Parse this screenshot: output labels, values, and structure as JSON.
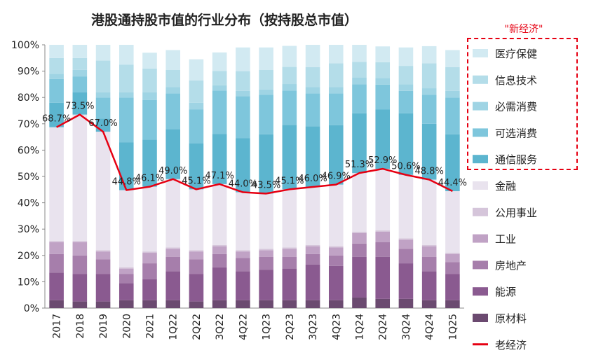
{
  "chart_data": {
    "type": "bar",
    "stacked": true,
    "title": "港股通持股市值的行业分布（按持股总市值）",
    "categories": [
      "2017",
      "2018",
      "2019",
      "2020",
      "2021",
      "1Q22",
      "2Q22",
      "3Q22",
      "4Q22",
      "1Q23",
      "2Q23",
      "3Q23",
      "4Q23",
      "1Q24",
      "2Q24",
      "3Q24",
      "4Q24",
      "1Q25"
    ],
    "ylim": [
      0,
      100
    ],
    "yticks": [
      "0%",
      "10%",
      "20%",
      "30%",
      "40%",
      "50%",
      "60%",
      "70%",
      "80%",
      "90%",
      "100%"
    ],
    "grid": false,
    "legend_position": "right",
    "highlight_label": "\"新经济\"",
    "series": [
      {
        "name": "原材料",
        "color": "#6b4a70",
        "values": [
          3.0,
          2.5,
          2.5,
          3.0,
          3.0,
          3.0,
          2.5,
          3.0,
          3.0,
          3.0,
          3.0,
          3.0,
          3.0,
          4.0,
          3.5,
          3.5,
          3.0,
          3.0
        ]
      },
      {
        "name": "能源",
        "color": "#8a5a90",
        "values": [
          10.5,
          10.5,
          10.5,
          6.5,
          8.0,
          11.0,
          10.5,
          12.5,
          11.0,
          11.5,
          12.0,
          13.5,
          13.0,
          15.5,
          16.0,
          13.5,
          11.0,
          10.0
        ]
      },
      {
        "name": "房地产",
        "color": "#a67eab",
        "values": [
          7.0,
          7.0,
          5.5,
          3.5,
          6.0,
          5.5,
          5.5,
          5.0,
          5.0,
          5.0,
          4.5,
          4.0,
          4.0,
          5.0,
          5.5,
          5.5,
          5.5,
          4.5
        ]
      },
      {
        "name": "工业",
        "color": "#c0a2c5",
        "values": [
          4.5,
          5.0,
          3.0,
          2.0,
          4.0,
          3.0,
          3.0,
          3.0,
          2.5,
          2.5,
          3.0,
          3.0,
          3.0,
          4.0,
          4.0,
          3.5,
          4.0,
          3.0
        ]
      },
      {
        "name": "公用事业",
        "color": "#d5c5da",
        "values": [
          0.5,
          0.5,
          0.5,
          0.5,
          0.5,
          0.5,
          0.5,
          0.5,
          0.5,
          0.5,
          0.5,
          0.5,
          0.5,
          0.5,
          0.5,
          0.5,
          0.5,
          0.5
        ]
      },
      {
        "name": "金融",
        "color": "#e9e3ee",
        "values": [
          43.2,
          48.0,
          45.0,
          29.3,
          24.6,
          26.0,
          23.1,
          23.1,
          22.0,
          21.0,
          22.1,
          22.0,
          23.4,
          22.3,
          23.4,
          24.1,
          24.8,
          23.4
        ]
      },
      {
        "name": "通信服务",
        "color": "#5cb5cf",
        "values": [
          9.3,
          8.5,
          5.0,
          18.2,
          17.9,
          19.0,
          17.4,
          19.0,
          20.5,
          22.5,
          24.5,
          23.0,
          22.6,
          22.7,
          22.5,
          23.4,
          21.2,
          21.6
        ]
      },
      {
        "name": "可选消费",
        "color": "#7ec6dc",
        "values": [
          9.0,
          6.0,
          8.0,
          17.0,
          15.0,
          13.5,
          13.0,
          16.5,
          16.0,
          15.0,
          13.0,
          12.5,
          12.0,
          11.0,
          9.5,
          8.5,
          11.0,
          14.0
        ]
      },
      {
        "name": "必需消费",
        "color": "#9fd4e4",
        "values": [
          2.0,
          2.5,
          2.0,
          2.0,
          3.0,
          2.5,
          2.5,
          2.0,
          2.0,
          2.0,
          2.5,
          2.5,
          2.5,
          2.5,
          2.5,
          2.5,
          2.5,
          2.5
        ]
      },
      {
        "name": "信息技术",
        "color": "#b4dde9",
        "values": [
          6.0,
          4.5,
          12.0,
          10.5,
          9.0,
          6.5,
          8.5,
          5.5,
          7.5,
          7.5,
          6.5,
          7.5,
          9.0,
          6.0,
          6.0,
          7.0,
          9.5,
          9.0
        ]
      },
      {
        "name": "医疗保健",
        "color": "#d2eaf2",
        "values": [
          5.0,
          5.0,
          6.0,
          7.5,
          6.0,
          7.5,
          8.0,
          7.0,
          9.0,
          8.5,
          8.0,
          8.5,
          7.0,
          6.5,
          6.0,
          7.0,
          6.5,
          6.5
        ]
      }
    ],
    "line": {
      "name": "老经济",
      "color": "#e60012",
      "values": [
        68.7,
        73.5,
        67.0,
        44.8,
        46.1,
        49.0,
        45.1,
        47.1,
        44.0,
        43.5,
        45.1,
        46.0,
        46.9,
        51.3,
        52.9,
        50.6,
        48.8,
        44.4
      ],
      "labels": [
        "68.7%",
        "73.5%",
        "67.0%",
        "44.8%",
        "46.1%",
        "49.0%",
        "45.1%",
        "47.1%",
        "44.0%",
        "43.5%",
        "45.1%",
        "46.0%",
        "46.9%",
        "51.3%",
        "52.9%",
        "50.6%",
        "48.8%",
        "44.4%"
      ]
    }
  }
}
